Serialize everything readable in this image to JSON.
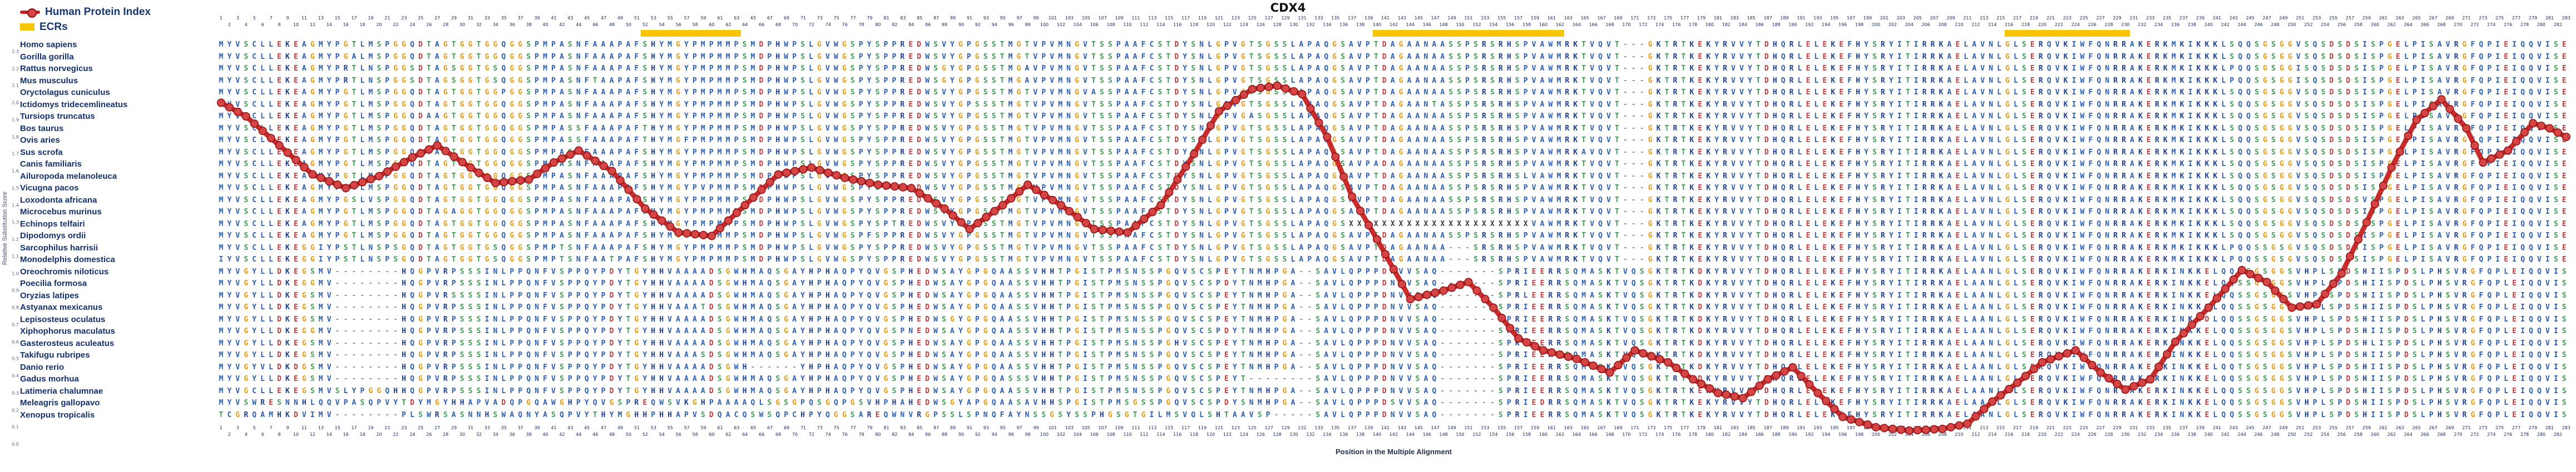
{
  "title": "CDX4",
  "legend": {
    "line_label": "Human Protein Index",
    "ecr_label": "ECRs",
    "line_color": "#c42222",
    "marker_fill": "#d64545",
    "marker_stroke": "#8f1111",
    "ecr_color": "#f7c500"
  },
  "y_axis": {
    "label": "Relative Substitution Score",
    "min": 0.0,
    "max": 2.4,
    "tick_step": 0.1
  },
  "x_axis": {
    "label": "Position in the Multiple Alignment",
    "columns": 283
  },
  "ecr_regions": [
    {
      "start": 52,
      "end": 63
    },
    {
      "start": 140,
      "end": 162
    },
    {
      "start": 216,
      "end": 230
    }
  ],
  "residue_colors": {
    "default": "#2e5fae",
    "G": "#e59a11",
    "S": "#3f9b54",
    "T": "#3f9b54",
    "D": "#bf4040",
    "E": "#bf4040",
    "K": "#1f3f8f",
    "R": "#1f3f8f",
    "H": "#1f3f8f",
    "X": "#3a3a3a",
    "-": "#8892a8"
  },
  "alignment": [
    {
      "species": "Homo sapiens",
      "sequence": "MYVSCLLEKEAGMYPGTLMSPGGQDTAGTGGTGGQGGSPMPASNFAAAPAFSHYMGYPMPMMPSMDPHWPSLGVWGSPYSPPREDWSVYGPGSSTMGTVPVMNGVTSSPAAFCSTDYSNLGPVGTSGSSLAPAQGSAVPTDAGAANAASSPSRSRHSPVAWMRKTVQVT---GKTRTKEKYRVVYTDHQRLELEKEFHYSRYITIRRKAELAVNLGLSERQVKIWFQNRRAKERKMKIKKKLSQQSGSGGVSQSDSDSISPGELPISAVRGFQPIEIQQVISE"
    },
    {
      "species": "Gorilla gorilla",
      "sequence": "MYVSCLLEKEAGMYPGALMSPGGQDTAGTGGTGGQGGSPMPASNFAAAPAFSHYMGYPMPMMPSMDPHWPSLGVWGSPYSPPREDWSVYGPGSSTMGTVPVMNGVTSSPAAFCSTDYSNLGPVGTSGSSLAPAQGSAVPTDAGAANAASSPSRSRHSPVAWMRKTVQVT---GKTRTKEKYRVVYTDHQRLELEKEFHYSRYITIRRKAELAVNLGLSERQVKIWFQNRRAKERKMKIKKKLSQQSGSGGVSQSDSDSISPGELPISAVRGFQPIEIQQVISE"
    },
    {
      "species": "Rattus norvegicus",
      "sequence": "MYVSCLLEKEAGMYPRTLNSPGGSDTAGSGGTGSQGGSPMPASNFAAAPAFSHYMGYPMPMMPSMDPHWPSLGVWGSPYSPPREDWSGYGPGSSTMGAVPVMNGVTSSPAAFCSTDYSNLGPVGTSGSSLAPAQGSAVPTDAGAANAASSPSRSRHSPVAWMRKTVQVT---GKTRTKEKYRVVYTDHQRLELEKEFHYSRYITIRRKAELAVNLGLSERQVKIWFQNRRAKERKMKIKKKLPQQSGSGGISQSDSDSISPGELPISAVRGFQPIEIQQVISE"
    },
    {
      "species": "Mus musculus",
      "sequence": "MYVSCLLEKEAGMYPRTLNSPGGSDTAGSGGTGSQGGSPMPASNFTAAPAFSHYMGYPMPMMPSMDPHWPSLGVWGSPYSPPREDWSGYGPGSSTMGAVPVMNGVTSSPAAFCSTDYSNLGPVGTSGSSLAPAQGSAVPTDAGAANAASSPSRSRHSPVAWMRKTVQVT---GKTRTKEKYRVVYTDHQRLELEKEFHYSRYITIRRKAELAVNLGLSERQVKIWFQNRRAKERKMKIKKKLPQQSGSGGISQSDSDSISPGELPISAVRGFQPIEIQQVISE"
    },
    {
      "species": "Oryctolagus cuniculus",
      "sequence": "MYVSCLLEKEAGMYPGTLMSPGGQDTAGTGGTGGPGGSPMPASNFAAAPAFSHYMGYPMPMMPSMDPHWPSLGVWGSPYSPPREDWSVYGPGSSTMGTVPVMNGVASSPAAFCSTDYSNLGPVGTSGSSLAPAQGSAVPTDAGAANAASSPSRSRHSPVAWMRKTVQVT---GKTRTKEKYRVVYTDHQRLELEKEFHYSRYITIRRKAELAVNLGLSERQVKIWFQNRRAKERKMKIKKKLSQQSGSGGVSQSDSDSISPGELPISAVRGFQPIEIQQVISE"
    },
    {
      "species": "Ictidomys tridecemlineatus",
      "sequence": "MYVSCLLEKEAGMYPGTLMSPGGQDTAGTGGTGGQGGSPMPASNFAAAPAFSHYMGYPMPMMPSMDPHWPSLGVWGSPYSPPREDWSVYGPSSSTMGTVPVMNGVTSSPAAFCSTDYSNLGPVGTSGSSLAPAQGSAVPTDAGAANTASSPSRSRHSPVAWMRKTVQVT---GKTRTKEKYRVVYTDHQRLELEKEFHYSRYITIRRKAELAVNLGLSERQVKIWFQNRRAKERKMKIKKKLSQQSGSGGVSQSDSDSISPGELPISAVRGFQPIEIQQVISE"
    },
    {
      "species": "Tursiops truncatus",
      "sequence": "MYVSCLLEKEAGMYPGTLMSPGGQDAAGTGGTGGQGGSPMPASNFAAAPAFSHYMGYPMPMMPSMDPHWPSLGVWGSPYSPPREDWSVYGPGSSTMGTVPVMNGVTSSPAAFCSTDYSNLGPVGASGSSLAPAQGSAVPTDAGAANAASSPSRSRHSPVAWMRKTVQVT---GKTRTKEKYRVVYTDHQRLELEKEFHYSRYITIRRKAELAVNLGLSERQVKIWFQNRRAKERKMKIKKKLSQQSGSGGVSQSDSDSISPGELPISAVRGFQPIEIQQVISE"
    },
    {
      "species": "Bos taurus",
      "sequence": "MYVSCLLEKEAGMYPGTLMSPGGQDTAGTGGTGGQGGSPMPASSFAAAPAFTHYMGYPMPMMPSMDPHWPSLGVWGSPYSPPREDWSVYGPGSSTMGTVPVMNGVTSSPAAFCSTDYSNLGPVGTSGSSLAPAQGSAVPTDAGAANAASSPSRSRHSPVAWMRKTVQVT---GKTRTKEKYRVVYTDHQRLELEKEFHYSRYITIRRKAELAVNLGLSERQVKIWFQNRRAKERKMKIKKKLSQQSGSGGVSQSDSDSISPGELPISAVRGFQPIEIQQVISE"
    },
    {
      "species": "Ovis aries",
      "sequence": "MYVSCLLEKEAGMYPGTLMSPGGQDTAGTGGTGGQGGSPMPASSFAAAPAFTHYMGFPMPMMPSMDPHWPSLGVWGSPYSPPREDWSVYGPGSSTMGTVPVMNGVTSSPAAFCSTDYSNLGPVGTSGSSLAPAQGSAVPTDAGAANAASSPSRSRHSPVAWMRKTVQVT---GKTRTKEKYRVVYTDHQRLELEKEFHYSRYITIRRKAELAVNLGLSERQVKIWFQNRRAKERKMKIKKKLSQQSGSGGVSQSDSDSISPGELPISAVRGFQPIEIQQVISE"
    },
    {
      "species": "Sus scrofa",
      "sequence": "MYVSCLLEKEAGMYPGTLMSPGGQDTAGTGGTGGQGGSPMPASNFAAAPAFSHYMGYPMPMMPSMDPHWPSLGVWGSPYSPPREDWSVYGPGSSTMGTVPVMNGVTSSPAAFCSTDYSNLGPVGTSGSSLAPAQGSAVPTDAGAANAASSPSRSRHSPVAWMRKAVQVT---GKTRTKEKYRVVYTDHQRLELEKEFHYSRYITIRRKAELAVNLGLSERQVKIWFQNRRAKERKMKIKKKLSQQSGSGGVSQSDSDSISPGELPISAVRGFQPIEIQQVISE"
    },
    {
      "species": "Canis familiaris",
      "sequence": "MYVSCLLEKEAGMYPGTLMSPGGQDTAGTGGTGGQGGSPMPASNFAAAPAFSHYMGYPMPMMPSMDPHWPSLGVWGSPYSPPREDWSVYGPGSSTMGTVPVMNGVTSSPAAFCSTDYSNLGPVGTSGSSLAPAQGSAVPADAGAANAASSPSRSRHSPVAWMRKTVQVT---GKTRTKEKYRVVYTDHQRLELEKEFHYSRYITIRRKAELAVNLGLSERQVKIWFQNRRAKERKMKIKKKLSQQSGSGGVSQSDSDSISPGELPISAVRGFQPIEIQQVISE"
    },
    {
      "species": "Ailuropoda melanoleuca",
      "sequence": "MYVSCLLEKEAGMYPGTLMSPGGQDTAGTGGTGGQGGSPMPASNFAAAPAFSHYMGYPMPMMPSMDPHWPSLGVWGSPYSPPREDWSVYGPGSSTMGTVPVMNGVTSSPAAFCSTDYSNLGPVGTSGSSLAPAQGSAVPTDAGAANAASSPSRSRHSLVAWMRKTVQVT---GKTRTKEKYRVVYTDHQRLELEKEFHYSRYITIRRKAELAVNLGLSERQVKIWFQNRRAKERKMKIKKKLSQQSGSGGVSQSDSDSISPGELPISAVRGFQPIEIQQVISE"
    },
    {
      "species": "Vicugna pacos",
      "sequence": "MYVSCLLEKEAGMYPGTLMSPGGQDTAGTGGTGGQGGSPMPASNFAAAPAFSHYMGYPVPMMPSMDPHWPSLGVWGSPYSPPREDWSVYGPGSSTMGTVPVMNGVTSSPAAFCSTDYSNLGPVGTSGSSLAPAQGSAVPTDAGAANAASSPSRSRHSPVAWMRKTVQVT---GKTRTKEKYRVVYTDHQRLELEKEFHYSRYITIRRKAELAVNLGLSERQVKIWFQNRRAKERKMKIKKKLSQQSGSGGVSQSDSDSISPGELPISAVRGFQPIEIQQVISE"
    },
    {
      "species": "Loxodonta africana",
      "sequence": "MYVSCLLEKEAGMYPGSLVSPGGQDTAGTGGTGGQGGSPMPASNFAAAPAFSHYMGYPMPMMPSMDPHWPSLGVWGSPYSPPREDWSVYGPGSSTMGTVPVMNGVTSSPAAFCSTDYSNLGPVGTSGSSLAPAQGSAVPTDAGAANAASSPSRSRHSPVAWMRKTVQVT---GKTRTKEKYRVVYTDHQRLELEKEFHYSRYITIRRKAELAVNLGLSERQVKIWFQNRRAKERKMKIKKKLSQQSGSGGVSQSDSDSVSPGELPISAVRGFQPIEIQQVISE"
    },
    {
      "species": "Microcebus murinus",
      "sequence": "MYVSCLLEKEAGMYPGTLMSPGGQDTAGAGGTGGQGGSPMPASNFAAAPAFSHYMGYPMPMMPSMDPHWPSLGVWGSPYSPPREDWSVYGPGSSTMGTVPVMNGVTSSPAAFCSTDYSNLGPVGTSGSSLAPAQGSAVPTDAGAANAASSPSRSRHSPVAWMRKTVQVT---GKTRTKEKYRVVYTDHQRLELEKEFHYSRYITIRRKAELAVNLGLSERQVKIWFQNRRAKERKMKIKKKLSQQSGSGGVSQSDSDSISPGELPISAVRGFQPIEIQQVISE"
    },
    {
      "species": "Echinops telfairi",
      "sequence": "MYVSCLLEKEAGMYPGTLMSPGGQDTAGTGGTGGQGGSPMPASNFAAAPAFSHYMGYPMPMMPSMDPHWPSLGVWGSPYSPTREDWSVYGPGSSTMGTVPVMNGVTSSPAAFCSTDYSNLGPVGTSGSSLAPAQGSXXXXXXXXXXXXXXXXXXXXXXVAWMRKTVQVT---GKTRTKEKYRVVYTDHQRLELEKEFHYSRYITIRRKAELAVNLGLSERQVKIWFQNRRAKERKMKIKKKLSQQSGSGGVSQSDSDSISPGELPISAVRGFQPIEIQQVISE"
    },
    {
      "species": "Dipodomys ordii",
      "sequence": "MYVSCLLEKEAGMYPGTLMSPGGQDTAGTGGTGGQGGSPMPASNFAAAPAFSHYMGYPMPMMPSMDPHWPSLGVWGSPFSPPREDWSVYGPGSSTMGTVPVMNGVTSSPAAFCSTDYSNLGPVGTSGSSLAPAQGSAVPTDAGAANAASSPSRSRHSPVAWMRKTVQVT---GKTRTKEKYRVVYTDHQRLELEKEFHYSRYITIRRKAELAVNLGLSERQVKIWFQNRRAKERKMKIKKKLSQQSGSGGVSQSDSDSISPGELPISAVRGFQPIEIQQVISE"
    },
    {
      "species": "Sarcophilus harrisii",
      "sequence": "MYVSCLLEKEGGIYPSTLNSPSGQDTAGTGGTGSQGGSPMPTSNFAAAPAFSHYMGYPMPMMPSMDPHWPSLGVWGSPYSPPREDWSVYGPGSSTMGTVPVMNGVTSSPAAFCSTDYSNLGPVGTSGSSLAPAQGSAVPTDAGAANAA---SRSRHSPVAWMRKTVQVT---GKTRTKEKYRVVYTDHQRLELEKEFHYSRYITIRRKAELAVNLGLSERQVKIWFQNRRAKERKMKIKKKLPQQSSGSGVSQSDSDSISPGELPISAVRGFQPIEIQQVISE"
    },
    {
      "species": "Monodelphis domestica",
      "sequence": "IYVSCLLEKEGGIYPSTLNSPSGQDTAGTGGTGSQGGSPMPTSNFAATPAFSHYMGYPMPMMPSMDPHWPSLGVWGSPYSPPREDWSVYGPGSSTMGTVPVMNGVTSSPAAFCSTDYSNLGPVGTSGSSLAPAQGSAVPTDAGAANAA---SRSRHSPVAWMRKTVQVT---GKTRTKEKYRVVYTDHQRLELEKEFHYSRYITIRRKAELAVNLGLSERQVKIWFQNRRAKERKMKIKKKLPQQSSGSGVSQSDSDSISPGELPISAVRGFQPIEIQQVISE"
    },
    {
      "species": "Oreochromis niloticus",
      "sequence": "MYVGYLLDKEGSMV--------HQGPVRPSSSINLPPQNFVSPPQYPDYTGYHHVAAAADSGWHMAQSGAYHPHAQPYQVGSPHEDWSAYGPGQAASSVHHTPGISTPMSNSSPGQVSCSPEYTNMHPGA--SAVLQPPPDNVVSAQ-------SPRIEERRSQMASKTVQSGKTRTKDKYRVVYTDHQRLELEKEFHYSRYITIRRKAELAANLGLSERQVKIWFQNRRAKERKINKKELQQSSGSGGSVHPLSPDSHIISPDSLPHSVRGFQPLEIQQVIS"
    },
    {
      "species": "Poecilia formosa",
      "sequence": "MYVGYLLDKEGGMV--------HQGPVRPSSSINLPPQNFVSPPQYPDYTGYHHVAAAADSGWHMAQSGAYHPHAQPYQVGSPHEDWSAYGPGQAASSVHHTPGISTPMSNSSPGQVSCSPDYTNMHPGA--SAVLQPPPDNVVSAQ-------SPRIEERRSQMASKTVQSGKTRTKDKYRVVYTDHQRLELEKEFHYSRYITIRRKAELAANLGLSERQVKIWFQNRRAKERKINKKELQQSSGSGGSVHPLSPDSHIISPDSLPHSVRGFQPLEIQQVIS"
    },
    {
      "species": "Oryzias latipes",
      "sequence": "MYVGYLLDKEGSMV--------HQGPVRSSSSINLPPQNFVSPPQYPDYTGYHHVAAAADSGWHMAQSGAYHPHAQPYQVGS PHEDWSAYGPGQAASSVHHTPGISTPMSNSSPGQVSCSPEYTNMHPGA--SAVLQPPPDNVVSAQ-------SPRLEERRSQMASKTVQSGKTRTKDKYRVVYTDHQRLELEKEFHYSRYITIRRKAELAANLGLSERQVKIWFQNRRAKERKINKKELQQSSGSGGSVHPLSPDSHIISPDSLPHSVRGFQPLEIQQVIS"
    },
    {
      "species": "Astyanax mexicanus",
      "sequence": "MYVGYLLDKEGSMV--------HQGPVRPSSSINLPPQNFVSPPQYPDYTGYHHVAAATDSGWHMAQSGAYHPHAQPYQVGSPHEDWSAYGPGQAASSVHHTPGISTPMSNSSPGQVSCSPEYTNMHPGA--SAVLQPPPDNVVSAQ-------SPRIEERRSQMASKTVQSGKTRTKDKYRVVYTDHQRLELEKEFHYSRYITIRRKAELAANLGLSERQVKIWFQNRRAKERKINKKELQQSSGSGGSVHPLSPDSHIISPDSLPHSVRGFQPLEIQQVIS"
    },
    {
      "species": "Lepisosteus oculatus",
      "sequence": "MYVGYLLDKEGSMV--------HQGPVRPSSSINLPPQNFVSPPQYPDYTGYHHVAAAADSGWHMAQSGAYHPHAQPYQVGSPHEDWSGYGPGQAASSVHHTPGISTPMSNSSPGQVSCSPEYTNMHPGA--SAVLQPPPDNVVSAQ-------SPRIEERRSQMASKTVQSGKTRTKDKYRVVYTDHQRLELEKEFHYSRYITIRRKAELAANLGLSERQVKIWFQNRRAKERKINKKDLQQSSGSGGSVHPLSPDSHIISPDSLPHSVRGFQPLEIQQVIS"
    },
    {
      "species": "Xiphophorus maculatus",
      "sequence": "MYVGYLLDKEGGMV--------HQGPVRPSSSINLPPQNFVSPPQYPDYTGYHHVAAAADSGWHMAQSGAYHPHAQPYQVGSPNEDWSAYGPGQAASSVHHTPGISTPMSNSSPGQVSCSPDYTNMHPGA--SAVLQPPPDNVVSAQ-------SPRIEERRSQMASKTVQSGKTRTKDKYRVVYTDHQRLELEKEFHYSRYITIRRKAELAANLGLSERQVKIWFQNRRAKERKINKKELQQSSGSGGSVHPLSPDSHIISPDSLPHSVRGFQPLEIQQVIS"
    },
    {
      "species": "Gasterosteus aculeatus",
      "sequence": "MYVGYLLDKEGSMV--------HQGPVRPSSSINLPPQNFVSPPQYPDYTGYHHVAAAADSGWHMAQSGAYHPHAQPYQVGSPHEDWSAYGPGQAASSVHHTPGISTPMSNSSPGHVSCSPEYTNMHPGA--SAVLQPPPDNVVSAQ-------SPRIEERRSQMASKTVQSGKTRTKDKYRVVYTDHQRLELEKEFHYSRYITIRRKAELAANLGLSERQVKIWFQNRRAKERKINKKELQQSSGSGGSVHPLSPDSHLISPDSLPHSVRGFQPLEIQQVIS"
    },
    {
      "species": "Takifugu rubripes",
      "sequence": "MYVGYLLDKEGSMV--------HQGPVRPSSSINLPPQNFVSPPQYPDYTGYHHVAAASDSGWHMAQSGAYHPHAQPYQVGSPHEDWSAYGPGQAASSVHHTPGISTPMSNSSPGQVSCSPEYTNMHPGA--SAVLQPPPDNVVSAQ-------SPRIEERRSQMASKTVQTGKTRTKDKYRVVYTDHQRLELEKEFHYSRYITIRRKAELAANLGLSERQVKIWFQNRRAKERKINKKELQQSSGSGGSVHPLSPDSHIISPDSLPHSVRGFQPLEIQQVIS"
    },
    {
      "species": "Danio rerio",
      "sequence": "MYVGYVLDKDGSMV--------HQGPVRPSSSINLPPQNFVSPPQYPDYTGYHHVAAAADSGWH------YHPHAQPYQVGSPHEDWSAYGPGQAASSVHHTPGISTPMSNSSPGQVSCSPEYTNMHPGA--SAVLQPPPDNVVSAQ-------SPRIEERRSQMASKTVQSGKTRTKDKYRVVYTDHQRLELEKEFHYSRYITIRRKAELAANLGLSERQVKIWFQNRRAKERKINKKELQQTSGSGGSVHPLSPDSHIISPDSLPHSVRGFQPLEIQQVIS"
    },
    {
      "species": "Gadus morhua",
      "sequence": "MYVGYLLDKEGSMV--------HQGPVRPSSSINLPPQNFVSPPQYPDYTGYHHVAAAADSGWHMAQSGAYHPHAQPYQVGSPHEDWSAYGPGQASSSVHHTPGISTPMSNSSPGQVSCSPEYT--------SAVLQPPPDNVVSAQ-------SPRIEERRSQMASKTVQSGKTRTKDKYRVVYTDHQRLELEKEFHYSRYITIRRKAELAANLGLSERQVKIWFQNRRAKERKINKKELQQSSGSGGSVHPLSPDSHIISPDSLPHSVRGFQPLEIQQVIS"
    },
    {
      "species": "Latimeria chalumnae",
      "sequence": "MYVGCLLEKEGSMVSLYPGGQHHQGPVRPSSSINLPPQNFVSPPQYPDYTGYHHVAAAADSGWHMAQSGAYHPHAQPYQVGSPHEDWSAYGPGQAASSVHHTPGISTPMSNSSPGQVSCSPEYTNMHPGA--SAVLQPPPDNVVSAQ-------SPRIEERRSQMASKTVQSGKTRTKEKYRVVYTDHQRLELEKEFHYSRYITIRRKAELAANLGLSERQVKIWFQNRRAKERKINKKELQQSSGSGGSVHPLSPDSHIISPDSLPHSVRGFQPLEIQQVIS"
    },
    {
      "species": "Meleagris gallopavo",
      "sequence": "MYVSWRESNNHLQQVPASQPVYTDYMGYHHAPVADQPGQAWGHPYQVGSPREQWSVKGHPAAAAQLSGSGPQSGQPGSVHPHAHEDWSGYAPGQAASAVHHSPGISTPMSGSSPGQVSCSPDYSNMHPGA--SAVLQPPPDSVVSAQ-------SPRIEDRRSQMASKTVQSGKTRTKEKYRVVYTDHQRLELEKEFHYSRYITIRRKAELAANLGLSERQVKIWFQNRRAKERKINKKELQQSSGSGGSVHPLSPDSHIISPDSLPHSVRGFQPLEIQQVIS"
    },
    {
      "species": "Xenopus tropicalis",
      "sequence": "TCGRQAMHKDVIMV--------PLSWRSASNNHSWAQNYASQPVYTHYMGHHPHHAPVSDQACQSWSQPCHPYQGGSAREQWNVRGPSSLSPNQFAYNSSGSYSSPHGSGTGILMSVQLSHTAAVSP-----SAVLQPPPDNVVSAQ-------SPRIEERRSQMASKTVQSGKTRTKEKYRVVYTDHQRLELEKEFHYSRYITIRRKAELAANLGLSERQVKIWFQNRRAKERKINKKELQQSSGSGGSVHPLSPDSHIISPDSLPHSVRGFQPLEIQQVIS"
    }
  ],
  "chart_data": {
    "type": "line",
    "title": "CDX4",
    "xlabel": "Position in the Multiple Alignment",
    "ylabel": "Relative Substitution Score",
    "xlim": [
      1,
      283
    ],
    "ylim": [
      0,
      2.4
    ],
    "grid": false,
    "legend_position": "top-left",
    "line_color": "#c42222",
    "ecr_regions": [
      [
        52,
        63
      ],
      [
        140,
        162
      ],
      [
        216,
        230
      ]
    ],
    "series": [
      {
        "name": "Human Protein Index",
        "x": [
          1,
          4,
          8,
          12,
          16,
          20,
          24,
          27,
          31,
          34,
          38,
          41,
          44,
          48,
          52,
          56,
          60,
          64,
          68,
          72,
          76,
          80,
          84,
          88,
          91,
          95,
          98,
          102,
          106,
          110,
          114,
          118,
          121,
          125,
          128,
          131,
          134,
          137,
          140,
          144,
          148,
          151,
          154,
          157,
          160,
          164,
          168,
          171,
          175,
          178,
          181,
          184,
          187,
          190,
          193,
          196,
          200,
          204,
          208,
          211,
          214,
          217,
          220,
          224,
          227,
          230,
          233,
          236,
          240,
          244,
          247,
          250,
          253,
          256,
          259,
          262,
          265,
          268,
          271,
          273,
          276,
          279,
          281,
          283
        ],
        "y": [
          2.0,
          1.92,
          1.75,
          1.58,
          1.5,
          1.57,
          1.68,
          1.75,
          1.62,
          1.53,
          1.55,
          1.65,
          1.72,
          1.6,
          1.38,
          1.24,
          1.22,
          1.4,
          1.58,
          1.62,
          1.56,
          1.52,
          1.5,
          1.38,
          1.26,
          1.4,
          1.52,
          1.4,
          1.26,
          1.24,
          1.4,
          1.7,
          1.95,
          2.08,
          2.1,
          2.05,
          1.8,
          1.45,
          1.2,
          0.85,
          0.9,
          0.95,
          0.8,
          0.62,
          0.55,
          0.5,
          0.42,
          0.55,
          0.48,
          0.38,
          0.3,
          0.27,
          0.38,
          0.45,
          0.3,
          0.16,
          0.1,
          0.08,
          0.09,
          0.12,
          0.25,
          0.36,
          0.48,
          0.55,
          0.42,
          0.32,
          0.38,
          0.6,
          0.8,
          1.02,
          0.95,
          0.8,
          0.82,
          1.0,
          1.3,
          1.62,
          1.9,
          2.02,
          1.85,
          1.65,
          1.72,
          1.88,
          1.85,
          1.8
        ]
      }
    ]
  }
}
